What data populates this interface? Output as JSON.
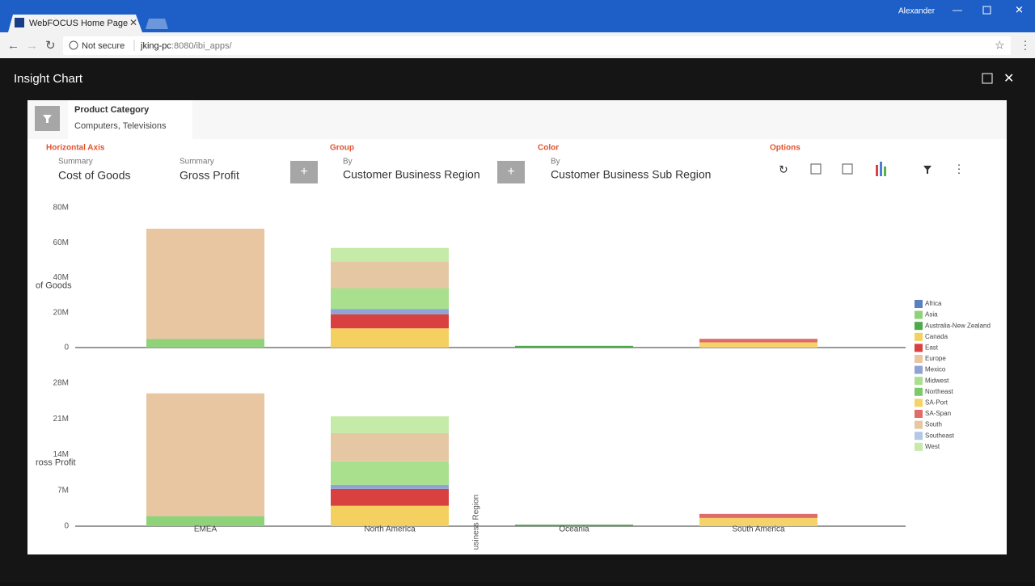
{
  "browser": {
    "tab_title": "WebFOCUS Home Page",
    "user": "Alexander",
    "security": "Not secure",
    "url_host": "jking-pc",
    "url_rest": ":8080/ibi_apps/"
  },
  "dialog": {
    "title": "Insight Chart",
    "filter_label": "Product Category",
    "filter_value": "Computers, Televisions",
    "horizontal_axis": "Horizontal Axis",
    "fields": [
      {
        "caption": "Summary",
        "name": "Cost of Goods"
      },
      {
        "caption": "Summary",
        "name": "Gross Profit"
      }
    ],
    "group": "Group",
    "group_by": "By",
    "group_field": "Customer Business Region",
    "color": "Color",
    "color_by": "By",
    "color_field": "Customer Business Sub Region",
    "options": "Options"
  },
  "chart_data": [
    {
      "type": "bar",
      "stacked": true,
      "y_label": "of Goods",
      "ylim": [
        0,
        80000000
      ],
      "yticks": [
        0,
        {
          "value": 20000000,
          "label": "20M"
        },
        {
          "value": 40000000,
          "label": "40M"
        },
        {
          "value": 60000000,
          "label": "60M"
        },
        {
          "value": 80000000,
          "label": "80M"
        }
      ],
      "series": [
        {
          "color": "#5b7fbf",
          "values": [
            null,
            null,
            null,
            null
          ]
        },
        {
          "color": "#8fd27a",
          "values": [
            5000000,
            null,
            null,
            null
          ]
        },
        {
          "color": "#4caa48",
          "values": [
            null,
            null,
            1000000,
            null
          ]
        },
        {
          "color": "#f3d060",
          "values": [
            null,
            11000000,
            null,
            null
          ]
        },
        {
          "color": "#d94040",
          "values": [
            null,
            8000000,
            null,
            null
          ]
        },
        {
          "color": "#e9c6a2",
          "values": [
            63000000,
            null,
            null,
            null
          ]
        },
        {
          "color": "#8fa3d4",
          "values": [
            null,
            3000000,
            null,
            null
          ]
        },
        {
          "color": "#a8e08e",
          "values": [
            null,
            12000000,
            null,
            null
          ]
        },
        {
          "color": "#7cc96a",
          "values": [
            null,
            null,
            null,
            null
          ]
        },
        {
          "color": "#f5d36a",
          "values": [
            null,
            null,
            null,
            3000000
          ]
        },
        {
          "color": "#e06b6b",
          "values": [
            null,
            null,
            null,
            2000000
          ]
        },
        {
          "color": "#e6c7a3",
          "values": [
            null,
            15000000,
            null,
            null
          ]
        },
        {
          "color": "#b5c7e6",
          "values": [
            null,
            null,
            null,
            null
          ]
        },
        {
          "color": "#c6eaa8",
          "values": [
            null,
            8000000,
            null,
            null
          ]
        }
      ]
    },
    {
      "type": "bar",
      "stacked": true,
      "y_label": "ross Profit",
      "x_label": "usiness Region",
      "ylim": [
        0,
        28000000
      ],
      "yticks": [
        0,
        {
          "value": 7000000,
          "label": "7M"
        },
        {
          "value": 14000000,
          "label": "14M"
        },
        {
          "value": 21000000,
          "label": "21M"
        },
        {
          "value": 28000000,
          "label": "28M"
        }
      ],
      "categories": [
        "EMEA",
        "North America",
        "Oceania",
        "South America"
      ],
      "series": [
        {
          "name": "Africa",
          "color": "#5b7fbf",
          "values": [
            null,
            null,
            null,
            null
          ]
        },
        {
          "name": "Asia",
          "color": "#8fd27a",
          "values": [
            2000000,
            null,
            null,
            null
          ]
        },
        {
          "name": "Australia-New Zealand",
          "color": "#4caa48",
          "values": [
            null,
            null,
            300000,
            null
          ]
        },
        {
          "name": "Canada",
          "color": "#f3d060",
          "values": [
            null,
            4000000,
            null,
            null
          ]
        },
        {
          "name": "East",
          "color": "#d94040",
          "values": [
            null,
            3300000,
            null,
            null
          ]
        },
        {
          "name": "Europe",
          "color": "#e9c6a2",
          "values": [
            24000000,
            null,
            null,
            null
          ]
        },
        {
          "name": "Mexico",
          "color": "#8fa3d4",
          "values": [
            null,
            800000,
            null,
            null
          ]
        },
        {
          "name": "Midwest",
          "color": "#a8e08e",
          "values": [
            null,
            4600000,
            null,
            null
          ]
        },
        {
          "name": "Northeast",
          "color": "#7cc96a",
          "values": [
            null,
            null,
            null,
            null
          ]
        },
        {
          "name": "SA-Port",
          "color": "#f5d36a",
          "values": [
            null,
            null,
            null,
            1600000
          ]
        },
        {
          "name": "SA-Span",
          "color": "#e06b6b",
          "values": [
            null,
            null,
            null,
            800000
          ]
        },
        {
          "name": "South",
          "color": "#e6c7a3",
          "values": [
            null,
            5500000,
            null,
            null
          ]
        },
        {
          "name": "Southeast",
          "color": "#b5c7e6",
          "values": [
            null,
            null,
            null,
            null
          ]
        },
        {
          "name": "West",
          "color": "#c6eaa8",
          "values": [
            null,
            3300000,
            null,
            null
          ]
        }
      ]
    }
  ]
}
